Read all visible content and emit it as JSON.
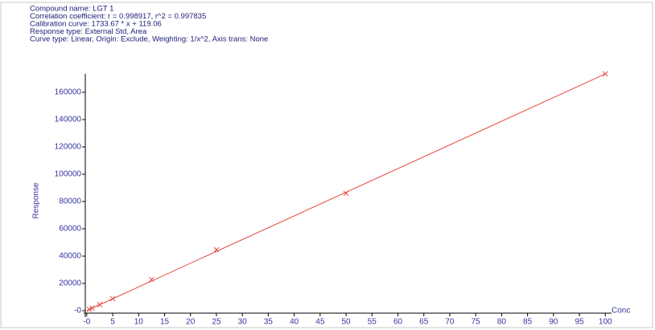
{
  "chart_data": {
    "type": "scatter",
    "info": [
      "Compound name: LGT 1",
      "Correlation coefficient: r = 0.998917, r^2 = 0.997835",
      "Calibration curve: 1733.67 * x + 119.06",
      "Response type: External Std, Area",
      "Curve type: Linear, Origin: Exclude, Weighting: 1/x^2, Axis trans: None"
    ],
    "y_label": "Response",
    "x_label": "Conc",
    "x": [
      0.5,
      1,
      2.5,
      5,
      12.5,
      25,
      50,
      100
    ],
    "values": [
      1000,
      1900,
      4400,
      8800,
      22900,
      44700,
      85900,
      173500
    ],
    "color": "#e5483f",
    "fit": {
      "x": [
        0,
        100
      ],
      "values": [
        119.06,
        173486
      ]
    },
    "xlim": [
      -0.6,
      101.2
    ],
    "ylim": [
      -4700,
      173500
    ],
    "xticks": [
      {
        "value": 0,
        "label": "-0"
      },
      5,
      10,
      15,
      20,
      25,
      30,
      35,
      40,
      45,
      50,
      55,
      60,
      65,
      70,
      75,
      80,
      85,
      90,
      95,
      100
    ],
    "yticks": [
      {
        "value": 0,
        "label": "-0"
      },
      20000,
      40000,
      60000,
      80000,
      100000,
      120000,
      140000,
      160000
    ]
  }
}
